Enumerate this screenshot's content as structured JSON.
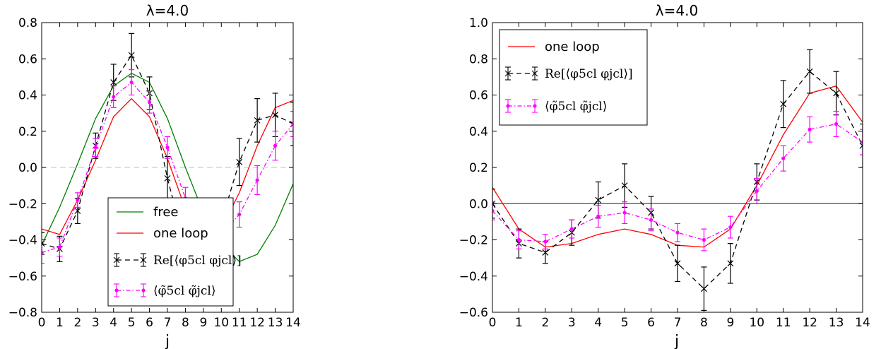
{
  "chart_data": [
    {
      "type": "line",
      "title": "λ=4.0",
      "xlabel": "j",
      "ylabel": "",
      "xlim": [
        0,
        14
      ],
      "ylim": [
        -0.8,
        0.8
      ],
      "xticks": [
        0,
        1,
        2,
        3,
        4,
        5,
        6,
        7,
        8,
        9,
        10,
        11,
        12,
        13,
        14
      ],
      "xtick_labels": [
        "0",
        "1",
        "2",
        "3",
        "4",
        "5",
        "6",
        "7",
        "8",
        "9",
        "10",
        "11",
        "12",
        "13",
        "14"
      ],
      "yticks": [
        -0.8,
        -0.6,
        -0.4,
        -0.2,
        0.0,
        0.2,
        0.4,
        0.6,
        0.8
      ],
      "ytick_labels": [
        "−0.8",
        "−0.6",
        "−0.4",
        "−0.2",
        "0.0",
        "0.2",
        "0.4",
        "0.6",
        "0.8"
      ],
      "grid": false,
      "legend_position": "lower-center",
      "hline": {
        "y": 0.0,
        "color": "#b0d8d8",
        "style": "dashed"
      },
      "x": [
        0,
        1,
        2,
        3,
        4,
        5,
        6,
        7,
        8,
        9,
        10,
        11,
        12,
        13,
        14
      ],
      "series": [
        {
          "name": "free",
          "color": "#007f00",
          "style": "solid",
          "marker": "none",
          "values": [
            -0.43,
            -0.22,
            0.02,
            0.27,
            0.45,
            0.52,
            0.47,
            0.27,
            0.0,
            -0.25,
            -0.42,
            -0.52,
            -0.48,
            -0.32,
            -0.09
          ]
        },
        {
          "name": "one loop",
          "color": "#ff0000",
          "style": "solid",
          "marker": "none",
          "values": [
            -0.34,
            -0.37,
            -0.18,
            0.04,
            0.28,
            0.38,
            0.28,
            0.05,
            -0.23,
            -0.37,
            -0.34,
            -0.14,
            0.12,
            0.33,
            0.37
          ]
        },
        {
          "name": "Re[⟨φ5cl φjcl⟩]",
          "color": "#000000",
          "style": "dashed",
          "marker": "x",
          "values": [
            -0.42,
            -0.45,
            -0.24,
            0.12,
            0.47,
            0.62,
            0.41,
            -0.06,
            -0.44,
            -0.55,
            -0.3,
            0.03,
            0.26,
            0.29,
            0.24
          ],
          "errors": [
            0.06,
            0.07,
            0.07,
            0.07,
            0.1,
            0.12,
            0.09,
            0.12,
            0.12,
            0.11,
            0.1,
            0.13,
            0.12,
            0.12,
            0.12
          ]
        },
        {
          "name": "⟨φ̃5cl φ̃jcl⟩",
          "color": "#ff00ff",
          "style": "dashdot",
          "marker": "dot",
          "values": [
            -0.47,
            -0.44,
            -0.18,
            0.11,
            0.39,
            0.47,
            0.36,
            0.11,
            -0.17,
            -0.35,
            -0.37,
            -0.26,
            -0.07,
            0.12,
            0.24
          ],
          "errors": [
            0.06,
            0.05,
            0.04,
            0.05,
            0.06,
            0.07,
            0.06,
            0.06,
            0.06,
            0.06,
            0.06,
            0.07,
            0.08,
            0.08,
            0.07
          ]
        }
      ]
    },
    {
      "type": "line",
      "title": "λ=4.0",
      "xlabel": "j",
      "ylabel": "",
      "xlim": [
        0,
        14
      ],
      "ylim": [
        -0.6,
        1.0
      ],
      "xticks": [
        0,
        1,
        2,
        3,
        4,
        5,
        6,
        7,
        8,
        9,
        10,
        11,
        12,
        13,
        14
      ],
      "xtick_labels": [
        "0",
        "1",
        "2",
        "3",
        "4",
        "5",
        "6",
        "7",
        "8",
        "9",
        "10",
        "11",
        "12",
        "13",
        "14"
      ],
      "yticks": [
        -0.6,
        -0.4,
        -0.2,
        0.0,
        0.2,
        0.4,
        0.6,
        0.8,
        1.0
      ],
      "ytick_labels": [
        "−0.6",
        "−0.4",
        "−0.2",
        "0.0",
        "0.2",
        "0.4",
        "0.6",
        "0.8",
        "1.0"
      ],
      "grid": false,
      "legend_position": "upper-left",
      "hline": {
        "y": 0.0,
        "color": "#007f00",
        "style": "solid"
      },
      "x": [
        0,
        1,
        2,
        3,
        4,
        5,
        6,
        7,
        8,
        9,
        10,
        11,
        12,
        13,
        14
      ],
      "series": [
        {
          "name": "one loop",
          "color": "#ff0000",
          "style": "solid",
          "marker": "none",
          "values": [
            0.09,
            -0.14,
            -0.24,
            -0.22,
            -0.17,
            -0.14,
            -0.17,
            -0.23,
            -0.24,
            -0.14,
            0.1,
            0.38,
            0.61,
            0.65,
            0.45
          ]
        },
        {
          "name": "Re[⟨φ5cl φjcl⟩]",
          "color": "#000000",
          "style": "dashed",
          "marker": "x",
          "values": [
            0.0,
            -0.22,
            -0.27,
            -0.16,
            0.02,
            0.1,
            -0.05,
            -0.33,
            -0.47,
            -0.33,
            0.12,
            0.55,
            0.73,
            0.61,
            0.32
          ],
          "errors": [
            0.08,
            0.08,
            0.06,
            0.07,
            0.1,
            0.12,
            0.09,
            0.1,
            0.12,
            0.11,
            0.1,
            0.13,
            0.12,
            0.12,
            0.12
          ]
        },
        {
          "name": "⟨φ̃5cl φ̃jcl⟩",
          "color": "#ff00ff",
          "style": "dashdot",
          "marker": "dot",
          "values": [
            -0.04,
            -0.2,
            -0.21,
            -0.14,
            -0.07,
            -0.05,
            -0.09,
            -0.16,
            -0.2,
            -0.13,
            0.07,
            0.25,
            0.41,
            0.44,
            0.34
          ],
          "errors": [
            0.05,
            0.05,
            0.04,
            0.05,
            0.06,
            0.06,
            0.06,
            0.05,
            0.06,
            0.06,
            0.07,
            0.07,
            0.07,
            0.07,
            0.07
          ]
        }
      ]
    }
  ]
}
